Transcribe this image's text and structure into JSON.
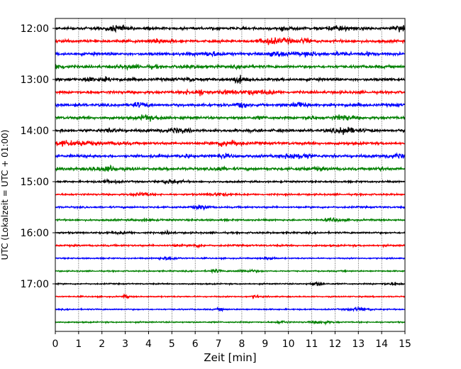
{
  "chart_data": {
    "type": "line",
    "xlabel": "Zeit  [min]",
    "ylabel": "UTC (Lokalzeit = UTC + 01:00)",
    "xlim": [
      0,
      15
    ],
    "x_ticks": [
      "0",
      "1",
      "2",
      "3",
      "4",
      "5",
      "6",
      "7",
      "8",
      "9",
      "10",
      "11",
      "12",
      "13",
      "14",
      "15"
    ],
    "y_tick_labels": [
      "12:00",
      "13:00",
      "14:00",
      "15:00",
      "16:00",
      "17:00"
    ],
    "trace_start_times": [
      "12:00",
      "12:15",
      "12:30",
      "12:45",
      "13:00",
      "13:15",
      "13:30",
      "13:45",
      "14:00",
      "14:15",
      "14:30",
      "14:45",
      "15:00",
      "15:15",
      "15:30",
      "15:45",
      "16:00",
      "16:15",
      "16:30",
      "16:45",
      "17:00",
      "17:15",
      "17:30",
      "17:45"
    ],
    "trace_colors": [
      "#000000",
      "#ff0000",
      "#0000ff",
      "#008000"
    ],
    "vertical_grid": "dotted",
    "horizontal_grid": false
  }
}
